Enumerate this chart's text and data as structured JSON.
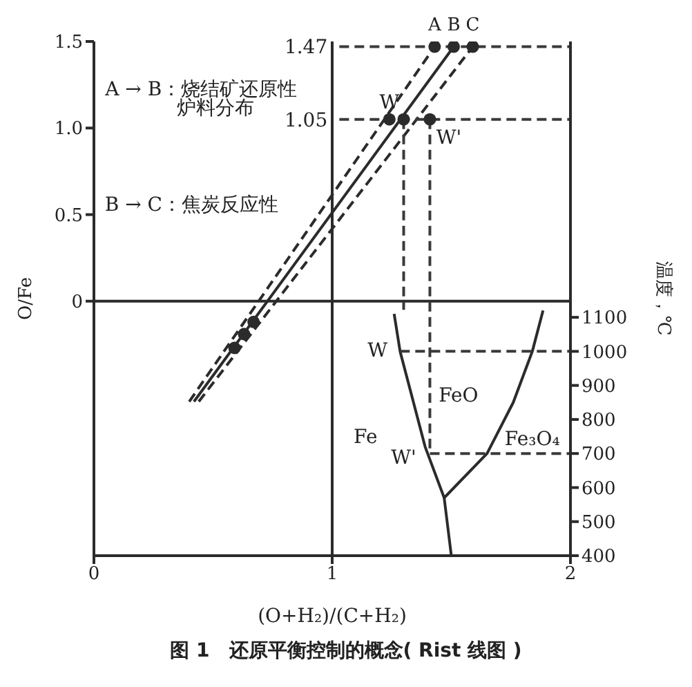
{
  "chart_data": {
    "type": "line",
    "title": "图 1　还原平衡控制的概念( Rist 线图 )",
    "xlabel": "(O+H₂)/(C+H₂)",
    "ylabel": "O/Fe",
    "y2label": "温度，℃",
    "xlim": [
      0,
      2
    ],
    "xticks": [
      0,
      1,
      2
    ],
    "ylim": [
      -1.47,
      1.5
    ],
    "yticks": [
      0,
      0.5,
      {
        "value": 1,
        "label": "1.0"
      },
      1.5
    ],
    "y2lim": [
      400,
      1910
    ],
    "y2ticks": [
      400,
      500,
      600,
      700,
      800,
      900,
      1000,
      1100
    ],
    "legend": false,
    "marker": "none",
    "series": [
      {
        "name": "A",
        "line_style": "dashed",
        "color": "#2b2b2b",
        "x": [
          0.4,
          1.43
        ],
        "values": [
          -0.58,
          1.47
        ]
      },
      {
        "name": "B",
        "line_style": "solid",
        "color": "#2b2b2b",
        "x": [
          0.42,
          1.51
        ],
        "values": [
          -0.58,
          1.47
        ]
      },
      {
        "name": "C",
        "line_style": "dashed",
        "color": "#2b2b2b",
        "x": [
          0.44,
          1.59
        ],
        "values": [
          -0.58,
          1.47
        ]
      },
      {
        "type": "scatter",
        "marker": "circle",
        "color": "#2b2b2b",
        "x": [
          1.43,
          1.51,
          1.59,
          1.24,
          1.3,
          1.41,
          0.59,
          0.63,
          0.67
        ],
        "values": [
          1.47,
          1.47,
          1.47,
          1.05,
          1.05,
          1.05,
          -0.27,
          -0.19,
          -0.12
        ]
      },
      {
        "type": "line",
        "line_style": "dashed",
        "color": "#3a3a3a",
        "x": [
          1.03,
          2
        ],
        "values": [
          1.47,
          1.47
        ]
      },
      {
        "type": "line",
        "line_style": "dashed",
        "color": "#3a3a3a",
        "x": [
          1.03,
          2
        ],
        "values": [
          1.05,
          1.05
        ]
      },
      {
        "type": "line",
        "line_style": "dashed",
        "color": "#3a3a3a",
        "x": [
          1.3,
          1.3
        ],
        "values": [
          1.05,
          -0.05
        ]
      },
      {
        "type": "line",
        "line_style": "dashed",
        "color": "#3a3a3a",
        "x": [
          1.41,
          1.41
        ],
        "values": [
          1.05,
          -0.87
        ]
      },
      {
        "type": "line",
        "axis": "y2",
        "line_style": "solid",
        "color": "#2b2b2b",
        "x": [
          1.26,
          1.285,
          1.39,
          1.47,
          1.5
        ],
        "values": [
          1110,
          1000,
          720,
          570,
          400
        ]
      },
      {
        "type": "line",
        "axis": "y2",
        "line_style": "solid",
        "color": "#2b2b2b",
        "x": [
          1.47,
          1.65,
          1.76,
          1.84,
          1.885
        ],
        "values": [
          570,
          700,
          850,
          1000,
          1120
        ]
      },
      {
        "type": "line",
        "axis": "y2",
        "line_style": "dashed",
        "color": "#3a3a3a",
        "x": [
          1.285,
          2
        ],
        "values": [
          1000,
          1000
        ]
      },
      {
        "type": "line",
        "axis": "y2",
        "line_style": "dashed",
        "color": "#3a3a3a",
        "x": [
          1.41,
          2
        ],
        "values": [
          700,
          700
        ]
      }
    ],
    "ref_lines": [
      {
        "axis": "x",
        "value": 1,
        "color": "#2b2b2b"
      },
      {
        "axis": "y",
        "value": 0,
        "color": "#2b2b2b"
      }
    ],
    "annotations": [
      "A → B：烧结矿还原性",
      "炉料分布",
      "B → C：焦炭反应性",
      "1.47",
      "1.05",
      {
        "text": "W",
        "x": 1.24,
        "y": 1.05
      },
      "W'",
      "W",
      "W'",
      "FeO",
      "Fe",
      "Fe₃O₄"
    ]
  }
}
